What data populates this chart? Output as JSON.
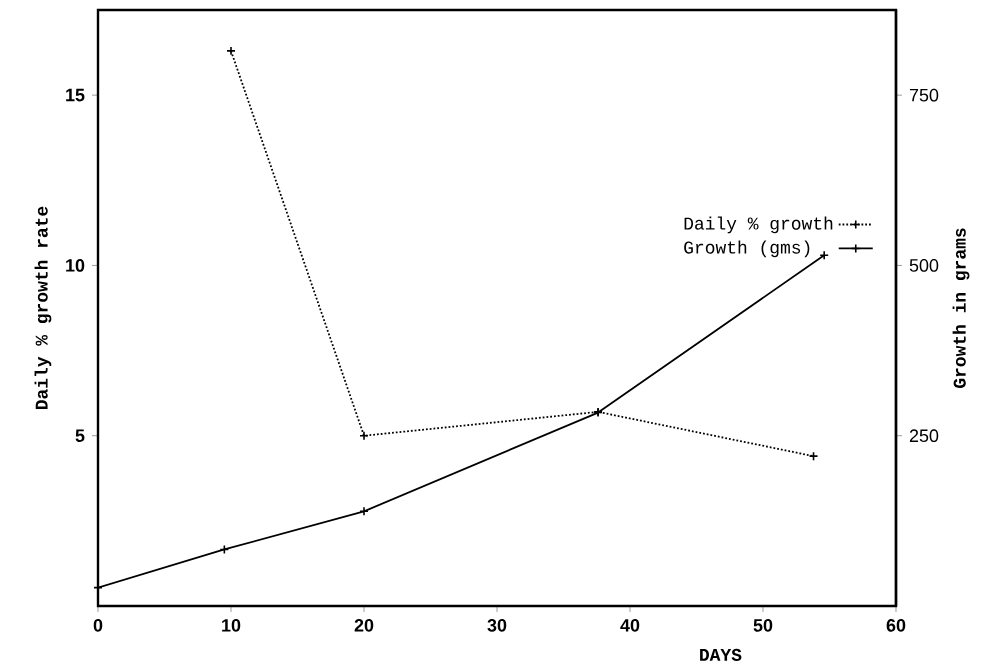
{
  "chart_data": {
    "type": "line",
    "xlabel": "DAYS",
    "ylabel": "Daily % growth rate",
    "y2label": "Growth in grams",
    "series": [
      {
        "name": "Daily % growth",
        "color": "#000000",
        "line_style": "dotted",
        "x": [
          10,
          20,
          37.6,
          53.8
        ],
        "values": [
          16.3,
          5.0,
          5.7,
          4.4
        ]
      },
      {
        "name": "Growth (gms)",
        "color": "#000000",
        "line_style": "solid",
        "axis": "y2",
        "x": [
          0,
          9.5,
          20,
          37.6,
          54.6
        ],
        "values": [
          27,
          83,
          139,
          284,
          515
        ]
      }
    ],
    "xlim": [
      0,
      60
    ],
    "xticks": [
      0,
      10,
      20,
      30,
      40,
      50,
      60
    ],
    "ylim": [
      0,
      17.5
    ],
    "yticks": [
      5,
      10,
      15
    ],
    "y2lim": [
      0,
      875
    ],
    "y2ticks": [
      250,
      500,
      750
    ],
    "marker": "cross",
    "legend": "right"
  }
}
